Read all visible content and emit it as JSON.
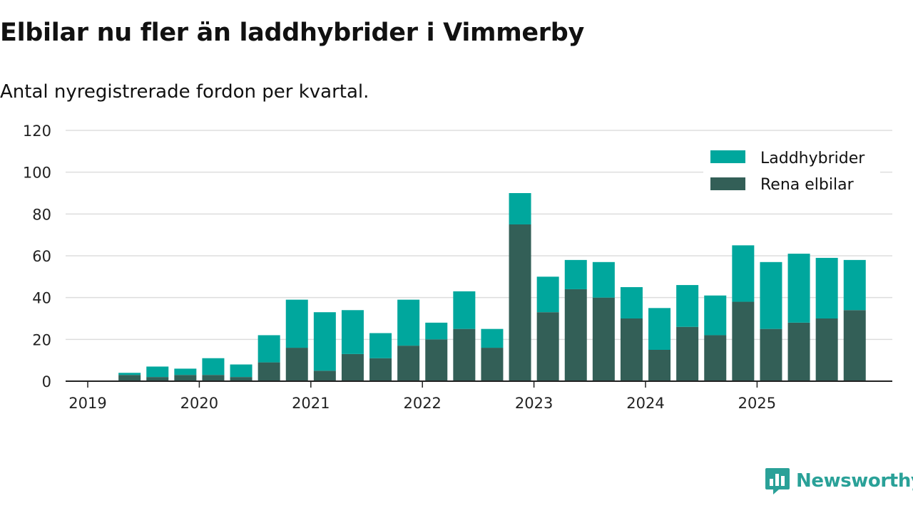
{
  "colors": {
    "hybrid": "#00a79d",
    "electric": "#335f57",
    "grid": "#dddddd",
    "axis": "#222222",
    "brand": "#2aa198"
  },
  "brand": {
    "name": "Newsworthy",
    "icon": "newsworthy-logo-icon"
  },
  "chart_data": {
    "type": "bar",
    "stacked": true,
    "title": "Elbilar nu fler än laddhybrider i Vimmerby",
    "subtitle": "Antal nyregistrerade fordon per kvartal.",
    "xlabel": "",
    "ylabel": "",
    "ylim": [
      0,
      120
    ],
    "yticks": [
      0,
      20,
      40,
      60,
      80,
      100,
      120
    ],
    "year_ticks": [
      "2019",
      "2020",
      "2021",
      "2022",
      "2023",
      "2024",
      "2025"
    ],
    "legend_position": "top-right",
    "grid": true,
    "categories": [
      "2019 Q2",
      "2019 Q3",
      "2019 Q4",
      "2020 Q1",
      "2020 Q2",
      "2020 Q3",
      "2020 Q4",
      "2021 Q1",
      "2021 Q2",
      "2021 Q3",
      "2021 Q4",
      "2022 Q1",
      "2022 Q2",
      "2022 Q3",
      "2022 Q4",
      "2023 Q1",
      "2023 Q2",
      "2023 Q3",
      "2023 Q4",
      "2024 Q1",
      "2024 Q2",
      "2024 Q3",
      "2024 Q4",
      "2025 Q1",
      "2025 Q2",
      "2025 Q3",
      "2025 Q4"
    ],
    "series": [
      {
        "name": "Rena elbilar",
        "values": [
          3,
          2,
          3,
          3,
          2,
          9,
          16,
          5,
          13,
          11,
          17,
          20,
          25,
          16,
          75,
          33,
          44,
          40,
          30,
          15,
          26,
          22,
          38,
          25,
          28,
          30,
          34
        ]
      },
      {
        "name": "Laddhybrider",
        "values": [
          1,
          5,
          3,
          8,
          6,
          13,
          23,
          28,
          21,
          12,
          22,
          8,
          18,
          9,
          15,
          17,
          14,
          17,
          15,
          20,
          20,
          19,
          27,
          32,
          33,
          29,
          24
        ]
      }
    ],
    "legend": [
      "Laddhybrider",
      "Rena elbilar"
    ]
  }
}
